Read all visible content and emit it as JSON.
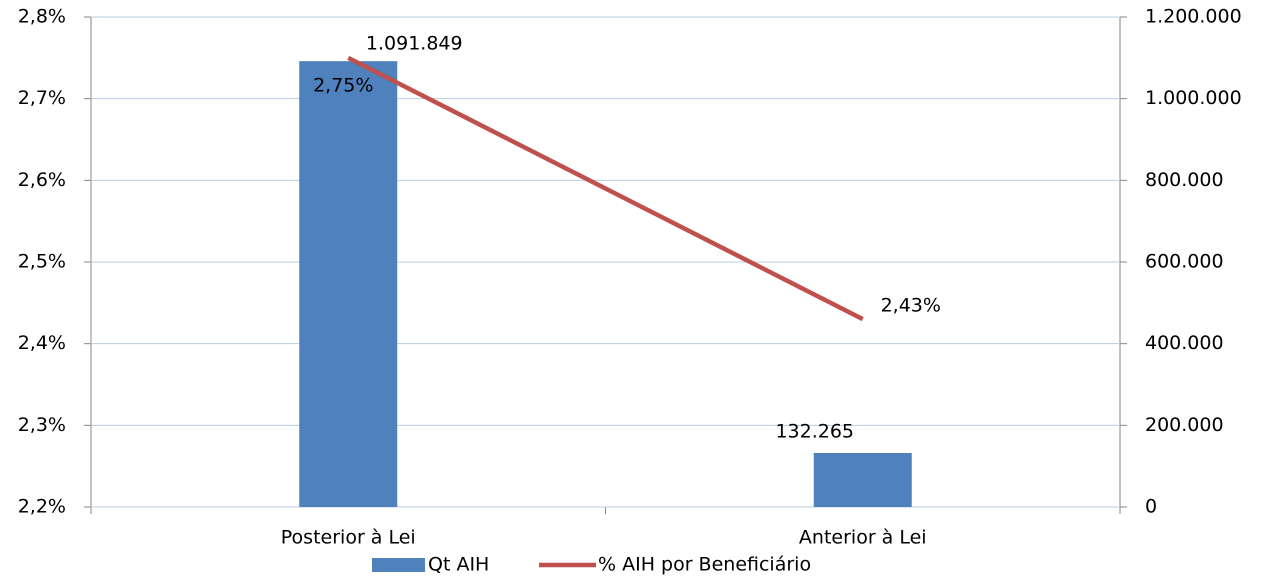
{
  "chart_data": {
    "type": "bar",
    "categories": [
      "Posterior à Lei",
      "Anterior à Lei"
    ],
    "series": [
      {
        "name": "Qt AIH",
        "type": "bar",
        "axis": "y2",
        "color": "#4f81bd",
        "values": [
          1091849,
          132265
        ],
        "value_labels": [
          "1.091.849",
          "132.265"
        ]
      },
      {
        "name": "% AIH por Beneficiário",
        "type": "line",
        "axis": "y",
        "color": "#c0504d",
        "values": [
          2.75,
          2.43
        ],
        "value_labels": [
          "2,75%",
          "2,43%"
        ]
      }
    ],
    "ylim": [
      2.2,
      2.8
    ],
    "yticks": [
      {
        "value": 2.2,
        "label": "2,2%"
      },
      {
        "value": 2.3,
        "label": "2,3%"
      },
      {
        "value": 2.4,
        "label": "2,4%"
      },
      {
        "value": 2.5,
        "label": "2,5%"
      },
      {
        "value": 2.6,
        "label": "2,6%"
      },
      {
        "value": 2.7,
        "label": "2,7%"
      },
      {
        "value": 2.8,
        "label": "2,8%"
      }
    ],
    "y2lim": [
      0,
      1200000
    ],
    "y2ticks": [
      0,
      {
        "value": 200000,
        "label": "200.000"
      },
      {
        "value": 400000,
        "label": "400.000"
      },
      {
        "value": 600000,
        "label": "600.000"
      },
      {
        "value": 800000,
        "label": "800.000"
      },
      {
        "value": 1000000,
        "label": "1.000.000"
      },
      {
        "value": 1200000,
        "label": "1.200.000"
      }
    ],
    "grid": true,
    "legend": "bottom"
  }
}
